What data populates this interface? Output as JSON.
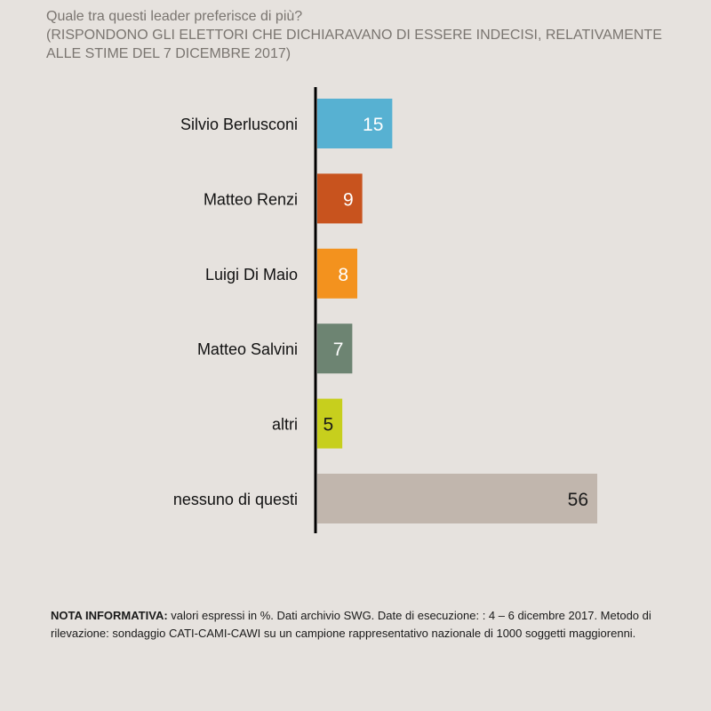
{
  "title": {
    "line1": "Quale tra questi leader preferisce di più?",
    "line2": "(RISPONDONO GLI ELETTORI CHE DICHIARAVANO DI ESSERE INDECISI, RELATIVAMENTE",
    "line3": "ALLE STIME DEL 7 DICEMBRE 2017)"
  },
  "chart_data": {
    "type": "bar",
    "orientation": "horizontal",
    "categories": [
      "Silvio Berlusconi",
      "Matteo Renzi",
      "Luigi Di Maio",
      "Matteo Salvini",
      "altri",
      "nessuno di questi"
    ],
    "values": [
      15,
      9,
      8,
      7,
      5,
      56
    ],
    "data_labels": [
      "15",
      "9",
      "8",
      "7",
      "5",
      "56"
    ],
    "colors": [
      "#57b1d2",
      "#c8531e",
      "#f3921e",
      "#6d8472",
      "#c7cf1d",
      "#c1b6ad"
    ],
    "label_colors": [
      "#ffffff",
      "#ffffff",
      "#ffffff",
      "#ffffff",
      "#1a1a1a",
      "#1a1a1a"
    ],
    "xlim": [
      0,
      56
    ],
    "unit": "%",
    "grid": false,
    "legend": "none"
  },
  "note": {
    "label": "NOTA INFORMATIVA:",
    "text": " valori espressi in %. Dati archivio SWG. Date di esecuzione: : 4 – 6 dicembre 2017. Metodo di rilevazione: sondaggio CATI-CAMI-CAWI su un campione rappresentativo nazionale di 1000 soggetti maggiorenni."
  }
}
